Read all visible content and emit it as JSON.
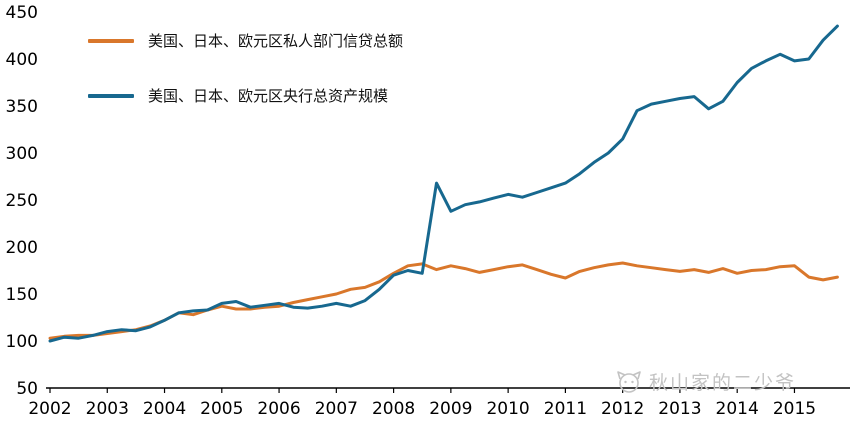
{
  "legend": {
    "item1_label": "美国、日本、欧元区私人部门信贷总额",
    "item2_label": "美国、日本、欧元区央行总资产规模"
  },
  "watermark": {
    "text": "秋山家的二少爷"
  },
  "colors": {
    "credit_orange": "#d9772b",
    "assets_blue": "#17688f",
    "axis": "#000000",
    "watermark_gray": "#c3c3c3"
  },
  "chart_data": {
    "type": "line",
    "title": "",
    "xlabel": "",
    "ylabel": "",
    "ylim": [
      50,
      450
    ],
    "xlim": [
      2002,
      2015.9
    ],
    "yticks": [
      50,
      100,
      150,
      200,
      250,
      300,
      350,
      400,
      450
    ],
    "xticks": [
      2002,
      2003,
      2004,
      2005,
      2006,
      2007,
      2008,
      2009,
      2010,
      2011,
      2012,
      2013,
      2014,
      2015
    ],
    "grid": false,
    "legend_position": "top-left-inside",
    "x": [
      2002,
      2002.25,
      2002.5,
      2002.75,
      2003,
      2003.25,
      2003.5,
      2003.75,
      2004,
      2004.25,
      2004.5,
      2004.75,
      2005,
      2005.25,
      2005.5,
      2005.75,
      2006,
      2006.25,
      2006.5,
      2006.75,
      2007,
      2007.25,
      2007.5,
      2007.75,
      2008,
      2008.25,
      2008.5,
      2008.75,
      2009,
      2009.25,
      2009.5,
      2009.75,
      2010,
      2010.25,
      2010.5,
      2010.75,
      2011,
      2011.25,
      2011.5,
      2011.75,
      2012,
      2012.25,
      2012.5,
      2012.75,
      2013,
      2013.25,
      2013.5,
      2013.75,
      2014,
      2014.25,
      2014.5,
      2014.75,
      2015,
      2015.25,
      2015.5,
      2015.75
    ],
    "series": [
      {
        "name": "美国、日本、欧元区私人部门信贷总额",
        "color": "#d9772b",
        "values": [
          103,
          105,
          106,
          106,
          108,
          110,
          112,
          116,
          122,
          130,
          128,
          133,
          137,
          134,
          134,
          136,
          137,
          141,
          144,
          147,
          150,
          155,
          157,
          163,
          172,
          180,
          182,
          176,
          180,
          177,
          173,
          176,
          179,
          181,
          176,
          171,
          167,
          174,
          178,
          181,
          183,
          180,
          178,
          176,
          174,
          176,
          173,
          177,
          172,
          175,
          176,
          179,
          180,
          168,
          165,
          168
        ]
      },
      {
        "name": "美国、日本、欧元区央行总资产规模",
        "color": "#17688f",
        "values": [
          100,
          104,
          103,
          106,
          110,
          112,
          111,
          115,
          122,
          130,
          132,
          133,
          140,
          142,
          136,
          138,
          140,
          136,
          135,
          137,
          140,
          137,
          143,
          155,
          170,
          175,
          172,
          268,
          238,
          245,
          248,
          252,
          256,
          253,
          258,
          263,
          268,
          278,
          290,
          300,
          315,
          345,
          352,
          355,
          358,
          360,
          347,
          355,
          375,
          390,
          398,
          405,
          398,
          400,
          420,
          435
        ]
      }
    ]
  }
}
